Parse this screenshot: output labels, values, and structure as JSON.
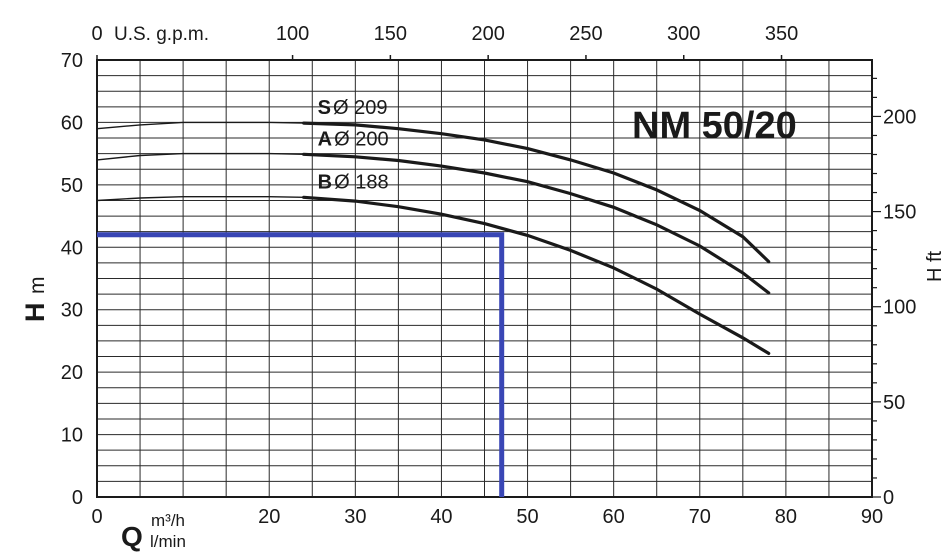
{
  "chart_data": {
    "type": "line",
    "title": "NM 50/20",
    "ylabel": "H",
    "ylabel_unit": "m",
    "y2label": "H ft",
    "xlabel": "Q",
    "xlabel_unit_top": "m³/h",
    "xlabel_unit_bottom": "l/min",
    "top_axis_label": "U.S. g.p.m.",
    "xlim": [
      0,
      90
    ],
    "ylim": [
      0,
      70
    ],
    "x_ticks": [
      0,
      20,
      30,
      40,
      50,
      60,
      70,
      80,
      90
    ],
    "y_ticks": [
      0,
      10,
      20,
      30,
      40,
      50,
      60,
      70
    ],
    "top_ticks": [
      0,
      100,
      150,
      200,
      250,
      300,
      350
    ],
    "right_ticks": [
      0,
      50,
      100,
      150,
      200
    ],
    "grid": true,
    "series": [
      {
        "name": "S",
        "diameter": "Ø 209",
        "x": [
          0,
          5,
          10,
          15,
          20,
          24,
          30,
          35,
          40,
          45,
          50,
          55,
          60,
          65,
          70,
          75,
          78
        ],
        "y": [
          59,
          59.6,
          60,
          60,
          60,
          59.9,
          59.6,
          59,
          58.2,
          57.2,
          55.8,
          54,
          51.9,
          49.2,
          45.9,
          41.7,
          37.7
        ]
      },
      {
        "name": "A",
        "diameter": "Ø 200",
        "x": [
          0,
          5,
          10,
          15,
          20,
          24,
          30,
          35,
          40,
          45,
          50,
          55,
          60,
          65,
          70,
          75,
          78
        ],
        "y": [
          54,
          54.7,
          55,
          55,
          55,
          54.9,
          54.5,
          53.9,
          53,
          51.9,
          50.5,
          48.6,
          46.4,
          43.6,
          40.2,
          35.9,
          32.7
        ]
      },
      {
        "name": "B",
        "diameter": "Ø 188",
        "x": [
          0,
          5,
          10,
          15,
          20,
          24,
          30,
          35,
          40,
          45,
          50,
          55,
          60,
          65,
          70,
          75,
          78
        ],
        "y": [
          47.5,
          47.9,
          48.1,
          48.1,
          48.1,
          48,
          47.4,
          46.5,
          45.3,
          43.8,
          41.9,
          39.5,
          36.7,
          33.3,
          29.3,
          25.5,
          23
        ]
      }
    ],
    "operating_point": {
      "x": 47,
      "y": 42,
      "color": "#3946b5"
    }
  }
}
